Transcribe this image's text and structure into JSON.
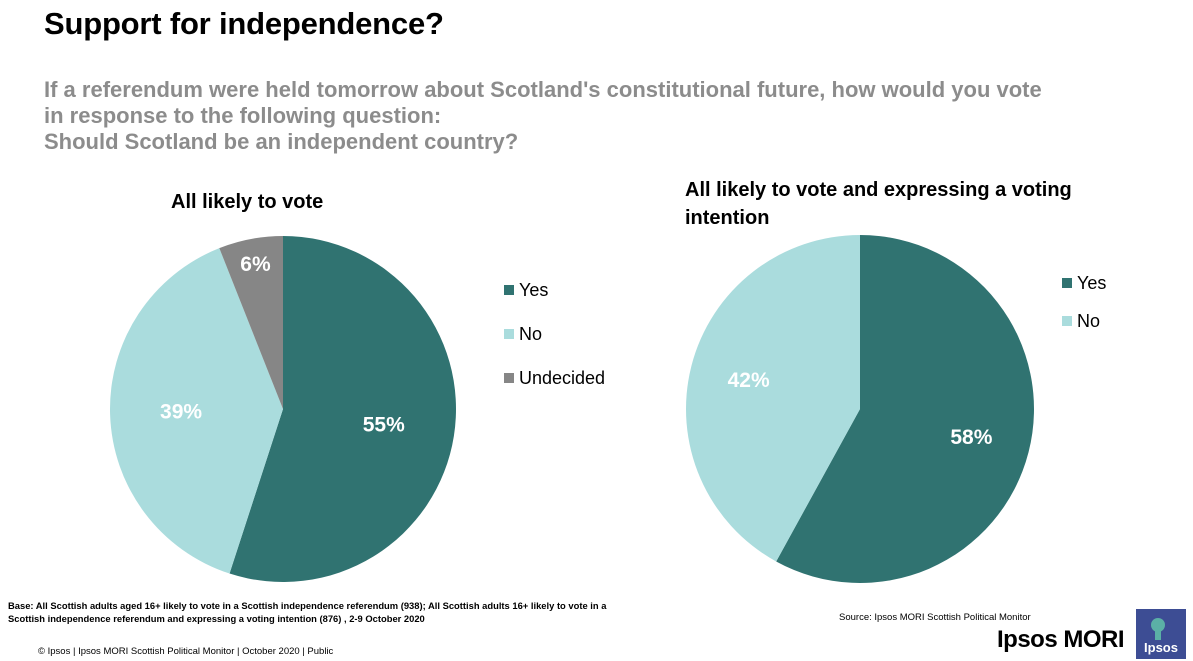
{
  "title": "Support for independence?",
  "question": {
    "line1": "If a referendum were held tomorrow about Scotland's constitutional future, how would you vote",
    "line2": "in response to the following question:",
    "line3": "Should Scotland be an independent country?"
  },
  "colors": {
    "yes": "#307371",
    "no": "#aadcdd",
    "undecided": "#868686"
  },
  "chart_data": [
    {
      "type": "pie",
      "title": "All likely to vote",
      "legend_position": "right",
      "slices": [
        {
          "label": "Yes",
          "value": 55,
          "display": "55%",
          "color": "#307371"
        },
        {
          "label": "No",
          "value": 39,
          "display": "39%",
          "color": "#aadcdd"
        },
        {
          "label": "Undecided",
          "value": 6,
          "display": "6%",
          "color": "#868686"
        }
      ]
    },
    {
      "type": "pie",
      "title": "All likely to vote and expressing a voting intention",
      "legend_position": "right",
      "slices": [
        {
          "label": "Yes",
          "value": 58,
          "display": "58%",
          "color": "#307371"
        },
        {
          "label": "No",
          "value": 42,
          "display": "42%",
          "color": "#aadcdd"
        }
      ]
    }
  ],
  "base_note": "Base: All Scottish adults aged 16+ likely to vote in a Scottish independence referendum (938); All Scottish adults 16+ likely to vote in a Scottish independence referendum and expressing a voting intention (876) , 2-9 October 2020",
  "source": "Source: Ipsos MORI Scottish Political Monitor",
  "footer": "© Ipsos | Ipsos MORI Scottish Political Monitor | October 2020 | Public",
  "brand": "Ipsos MORI",
  "logo_text": "Ipsos"
}
